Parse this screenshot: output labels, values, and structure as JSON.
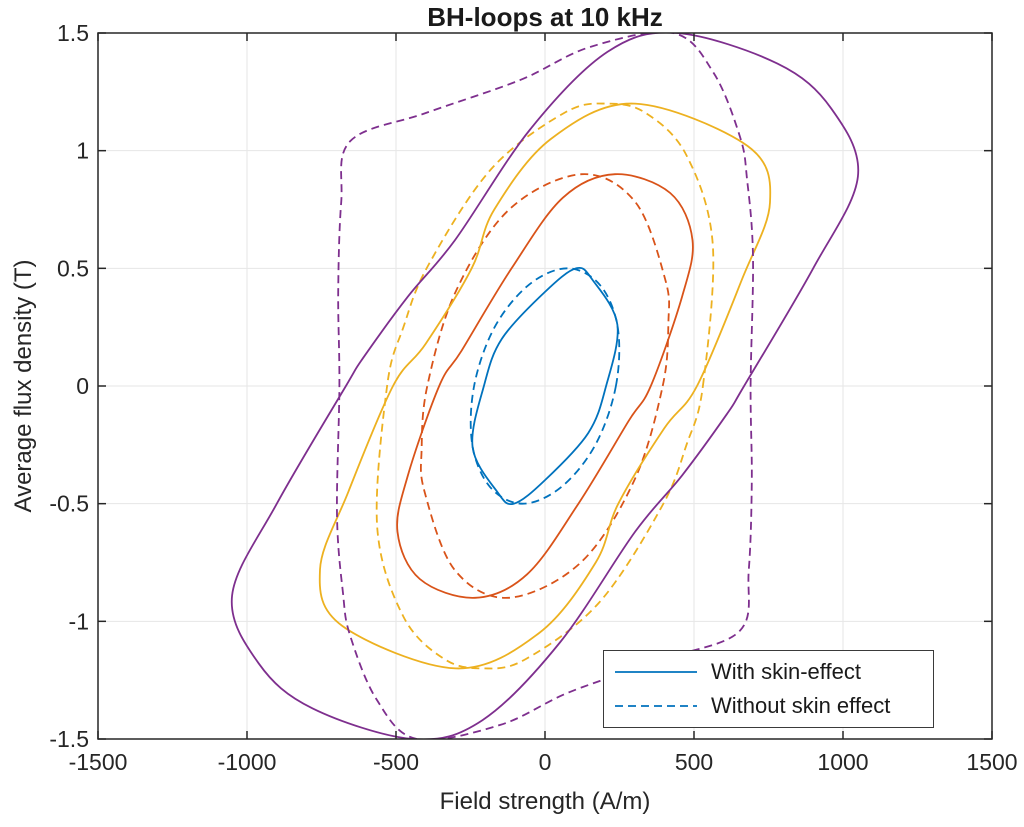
{
  "figure": {
    "title": "BH-loops at 10 kHz",
    "xlabel": "Field strength (A/m)",
    "ylabel": "Average flux density (T)"
  },
  "legend": {
    "items": [
      {
        "label": "With skin-effect",
        "style": "solid"
      },
      {
        "label": "Without skin effect",
        "style": "dashed"
      }
    ],
    "sample_color": "#0072BD",
    "position": "southeast"
  },
  "axis_style": {
    "axis_color": "#262626",
    "grid_color": "#e6e6e6",
    "background": "#ffffff",
    "line_width": 1.8,
    "dash_pattern": "8 5",
    "tick_length": 8,
    "tick_font_size": 23
  },
  "chart_data": {
    "type": "line",
    "title": "BH-loops at 10 kHz",
    "xlabel": "Field strength (A/m)",
    "ylabel": "Average flux density (T)",
    "xlim": [
      -1500,
      1500
    ],
    "ylim": [
      -1.5,
      1.5
    ],
    "x_ticks": [
      -1500,
      -1000,
      -500,
      0,
      500,
      1000,
      1500
    ],
    "y_ticks": [
      -1.5,
      -1,
      -0.5,
      0,
      0.5,
      1,
      1.5
    ],
    "grid": true,
    "legend_position": "lower right",
    "description": "Four nested pairs of BH hysteresis loops at flux-density amplitudes 0.5, 0.9, 1.2 and 1.5 T; solid = with skin-effect, dashed = without skin effect. Each loop is 180-degree rotationally symmetric: half_loop_points_HB lists [H (A/m), B (T)] counterclockwise from the ascending-branch zero crossing over the positive tip; the mirrored points complete the loop.",
    "series": [
      {
        "name": "0.5 T with skin-effect",
        "color": "#0072BD",
        "line_style": "solid",
        "b_peak_T": 0.5,
        "h_max_A_per_m": 243,
        "h_at_b0_A_per_m": 205,
        "h_at_tip_A_per_m": 105,
        "half_loop_points_HB": [
          [
            205,
            0
          ],
          [
            243,
            0.26
          ],
          [
            160,
            0.45
          ],
          [
            105,
            0.5
          ],
          [
            0,
            0.4
          ],
          [
            -145,
            0.2
          ]
        ]
      },
      {
        "name": "0.5 T without skin effect",
        "color": "#0072BD",
        "line_style": "dashed",
        "b_peak_T": 0.5,
        "h_max_A_per_m": 250,
        "h_at_b0_A_per_m": 238,
        "h_at_tip_A_per_m": 75,
        "half_loop_points_HB": [
          [
            238,
            0
          ],
          [
            244,
            0.25
          ],
          [
            184,
            0.43
          ],
          [
            75,
            0.5
          ],
          [
            -54,
            0.43
          ],
          [
            -169,
            0.25
          ]
        ]
      },
      {
        "name": "0.9 T with skin-effect",
        "color": "#D95319",
        "line_style": "solid",
        "b_peak_T": 0.9,
        "h_max_A_per_m": 495,
        "h_at_b0_A_per_m": 355,
        "h_at_tip_A_per_m": 235,
        "half_loop_points_HB": [
          [
            355,
            0
          ],
          [
            460,
            0.38
          ],
          [
            495,
            0.62
          ],
          [
            420,
            0.82
          ],
          [
            235,
            0.9
          ],
          [
            60,
            0.8
          ],
          [
            -112,
            0.5
          ],
          [
            -280,
            0.15
          ]
        ]
      },
      {
        "name": "0.9 T without skin effect",
        "color": "#D95319",
        "line_style": "dashed",
        "b_peak_T": 0.9,
        "h_max_A_per_m": 414,
        "h_at_b0_A_per_m": 395,
        "h_at_tip_A_per_m": 123,
        "half_loop_points_HB": [
          [
            395,
            0
          ],
          [
            414,
            0.27
          ],
          [
            404,
            0.45
          ],
          [
            304,
            0.78
          ],
          [
            123,
            0.9
          ],
          [
            -120,
            0.75
          ],
          [
            -300,
            0.4
          ]
        ]
      },
      {
        "name": "1.2 T with skin-effect",
        "color": "#EDB120",
        "line_style": "solid",
        "b_peak_T": 1.2,
        "h_max_A_per_m": 755,
        "h_at_b0_A_per_m": 510,
        "h_at_tip_A_per_m": 300,
        "half_loop_points_HB": [
          [
            510,
            0
          ],
          [
            660,
            0.45
          ],
          [
            755,
            0.78
          ],
          [
            680,
            1.02
          ],
          [
            300,
            1.2
          ],
          [
            20,
            1.05
          ],
          [
            -170,
            0.75
          ],
          [
            -246,
            0.5
          ],
          [
            -400,
            0.18
          ]
        ]
      },
      {
        "name": "1.2 T without skin effect",
        "color": "#EDB120",
        "line_style": "dashed",
        "b_peak_T": 1.2,
        "h_max_A_per_m": 569,
        "h_at_b0_A_per_m": 530,
        "h_at_tip_A_per_m": 208,
        "half_loop_points_HB": [
          [
            530,
            0
          ],
          [
            563,
            0.6
          ],
          [
            475,
            0.98
          ],
          [
            338,
            1.16
          ],
          [
            208,
            1.2
          ],
          [
            64,
            1.16
          ],
          [
            -182,
            0.92
          ],
          [
            -393,
            0.51
          ],
          [
            -475,
            0.25
          ]
        ]
      },
      {
        "name": "1.5 T with skin-effect",
        "color": "#7E2F8E",
        "line_style": "solid",
        "b_peak_T": 1.5,
        "h_max_A_per_m": 1065,
        "h_at_b0_A_per_m": 668,
        "h_at_tip_A_per_m": 443,
        "half_loop_points_HB": [
          [
            668,
            0
          ],
          [
            900,
            0.5
          ],
          [
            1050,
            0.89
          ],
          [
            960,
            1.18
          ],
          [
            780,
            1.37
          ],
          [
            443,
            1.5
          ],
          [
            210,
            1.42
          ],
          [
            -50,
            1.09
          ],
          [
            -302,
            0.62
          ],
          [
            -460,
            0.38
          ],
          [
            -610,
            0.12
          ]
        ]
      },
      {
        "name": "1.5 T without skin effect",
        "color": "#7E2F8E",
        "line_style": "dashed",
        "b_peak_T": 1.5,
        "h_max_A_per_m": 700,
        "h_at_b0_A_per_m": 690,
        "h_at_tip_A_per_m": 430,
        "half_loop_points_HB": [
          [
            690,
            0
          ],
          [
            698,
            0.55
          ],
          [
            678,
            0.88
          ],
          [
            654,
            1.06
          ],
          [
            566,
            1.33
          ],
          [
            430,
            1.5
          ],
          [
            150,
            1.44
          ],
          [
            -84,
            1.3
          ],
          [
            -400,
            1.16
          ],
          [
            -654,
            1.04
          ],
          [
            -684,
            0.78
          ],
          [
            -694,
            0.4
          ]
        ]
      }
    ]
  }
}
